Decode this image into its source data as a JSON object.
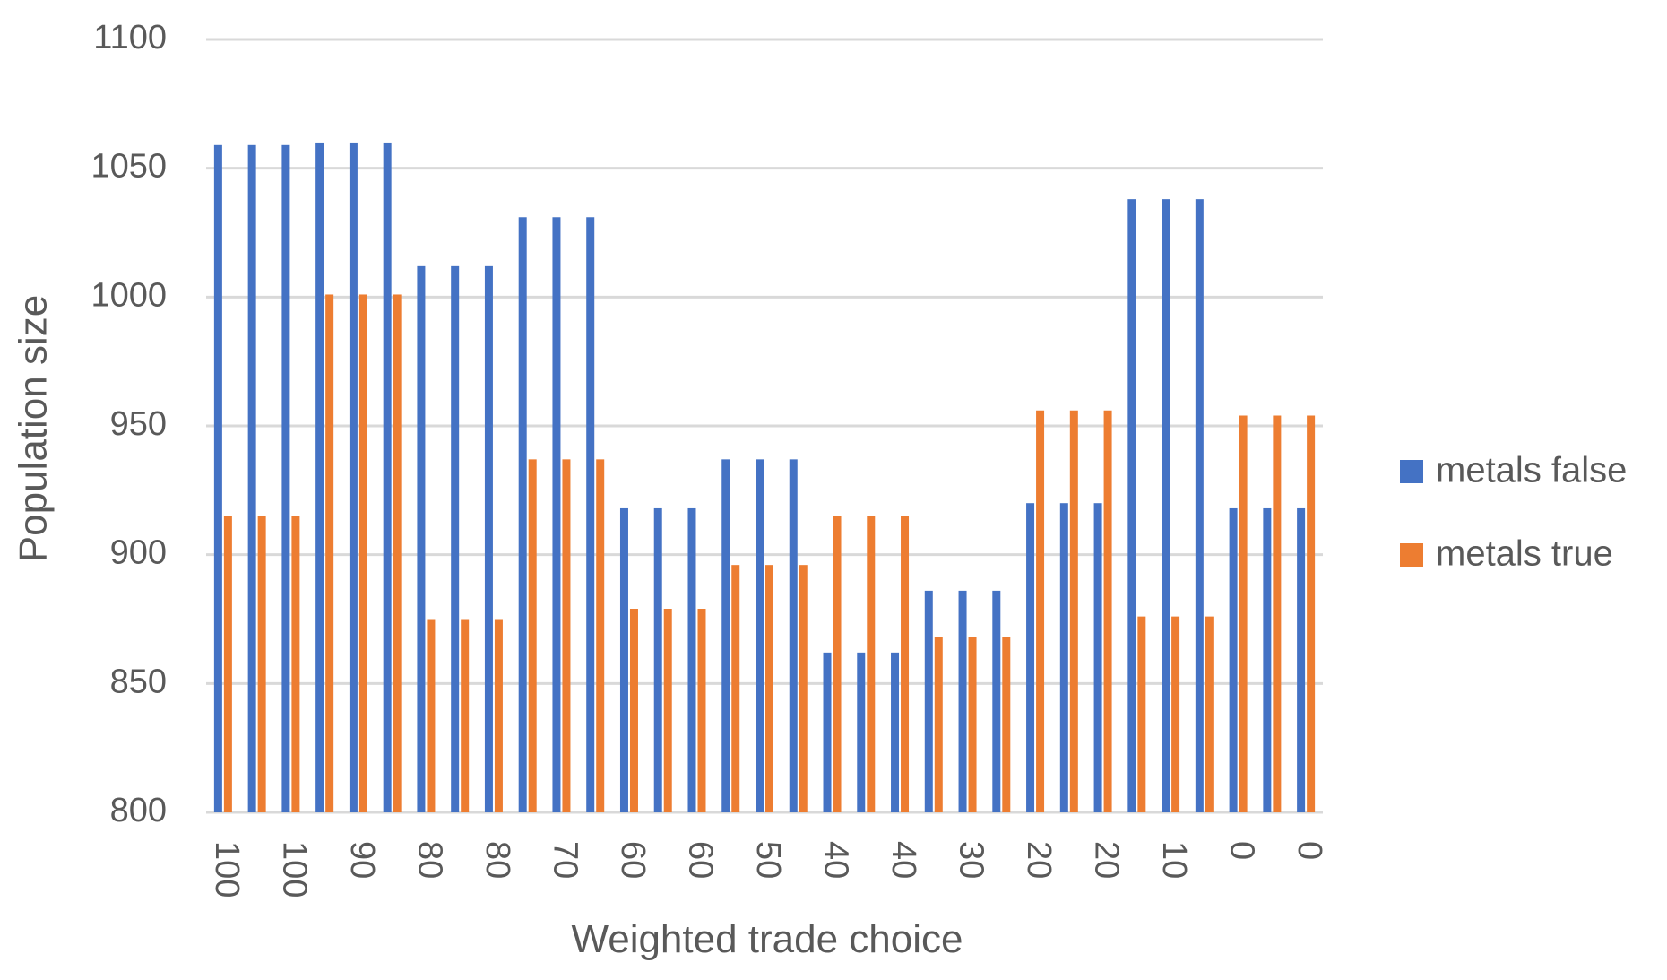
{
  "chart_data": {
    "type": "bar",
    "title": "",
    "xlabel": "Weighted trade choice",
    "ylabel": "Population size",
    "ylim": [
      800,
      1100
    ],
    "yticks": [
      800,
      850,
      900,
      950,
      1000,
      1050,
      1100
    ],
    "grid": true,
    "legend_position": "right",
    "categories": [
      "100",
      "",
      "100",
      "",
      "90",
      "",
      "80",
      "",
      "80",
      "",
      "70",
      "",
      "60",
      "",
      "60",
      "",
      "50",
      "",
      "40",
      "",
      "40",
      "",
      "30",
      "",
      "20",
      "",
      "20",
      "",
      "10",
      "",
      "0",
      "",
      "0"
    ],
    "series": [
      {
        "name": "metals false",
        "color": "#4472C4",
        "values": [
          1059,
          1059,
          1059,
          1060,
          1060,
          1060,
          1012,
          1012,
          1012,
          1031,
          1031,
          1031,
          918,
          918,
          918,
          937,
          937,
          937,
          862,
          862,
          862,
          886,
          886,
          886,
          920,
          920,
          920,
          1038,
          1038,
          1038,
          918,
          918,
          918
        ]
      },
      {
        "name": "metals true",
        "color": "#ED7D31",
        "values": [
          915,
          915,
          915,
          1001,
          1001,
          1001,
          875,
          875,
          875,
          937,
          937,
          937,
          879,
          879,
          879,
          896,
          896,
          896,
          915,
          915,
          915,
          868,
          868,
          868,
          956,
          956,
          956,
          876,
          876,
          876,
          954,
          954,
          954
        ]
      }
    ]
  }
}
